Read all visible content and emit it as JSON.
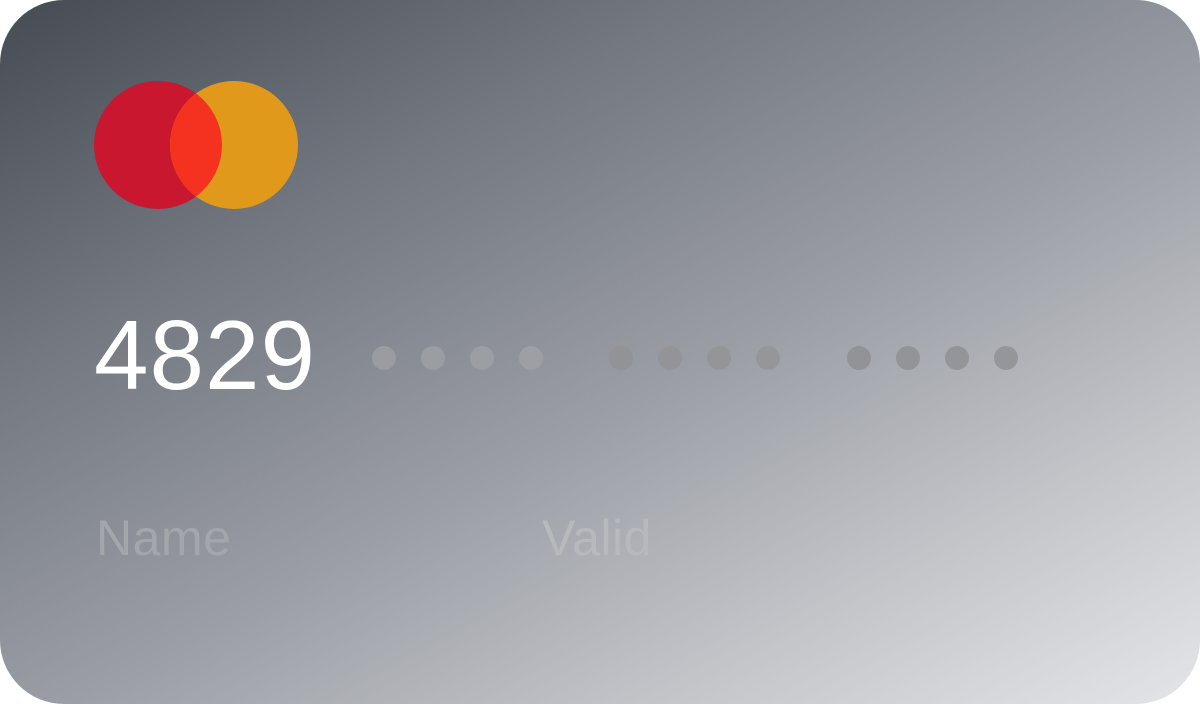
{
  "card": {
    "brand": "mastercard",
    "logo_icon": "mastercard-logo-icon",
    "logo_colors": {
      "left": "#c8172f",
      "right": "#e0991a",
      "overlap": "#f5321f"
    },
    "number_first_group": "4829",
    "masked_groups": 3,
    "masked_digits_per_group": 4,
    "name_label": "Name",
    "valid_label": "Valid"
  }
}
